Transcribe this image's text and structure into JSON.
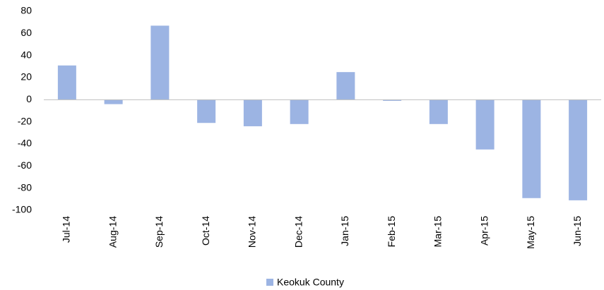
{
  "chart_data": {
    "type": "bar",
    "categories": [
      "Jul-14",
      "Aug-14",
      "Sep-14",
      "Oct-14",
      "Nov-14",
      "Dec-14",
      "Jan-15",
      "Feb-15",
      "Mar-15",
      "Apr-15",
      "May-15",
      "Jun-15"
    ],
    "series": [
      {
        "name": "Keokuk County",
        "color": "#9cb4e3",
        "values": [
          31,
          -4,
          67,
          -21,
          -24,
          -22,
          25,
          -1,
          -22,
          -45,
          -89,
          -91
        ]
      }
    ],
    "ylim": [
      -100,
      80
    ],
    "yticks": [
      80,
      60,
      40,
      20,
      0,
      -20,
      -40,
      -60,
      -80,
      -100
    ],
    "grid": false,
    "legend": "bottom"
  }
}
